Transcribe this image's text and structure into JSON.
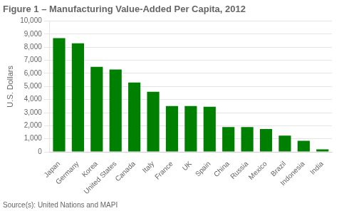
{
  "chart_data": {
    "type": "bar",
    "title": "Figure 1 – Manufacturing Value-Added Per Capita, 2012",
    "ylabel": "U.S. Dollars",
    "annotations": [
      "Source(s): United Nations and MAPI"
    ],
    "categories": [
      "Japan",
      "Germany",
      "Korea",
      "United States",
      "Canada",
      "Italy",
      "France",
      "UK",
      "Spain",
      "China",
      "Russia",
      "Mexico",
      "Brazil",
      "Indonesia",
      "India"
    ],
    "values": [
      8700,
      8300,
      6500,
      6300,
      5300,
      4600,
      3500,
      3500,
      3450,
      1900,
      1900,
      1750,
      1250,
      850,
      200
    ],
    "color": "#008000",
    "ylim": [
      0,
      10000
    ],
    "yticks": [
      0,
      {
        "value": 1000,
        "label": "1,000"
      },
      {
        "value": 2000,
        "label": "2,000"
      },
      {
        "value": 3000,
        "label": "3,000"
      },
      {
        "value": 4000,
        "label": "4,000"
      },
      {
        "value": 5000,
        "label": "5,000"
      },
      {
        "value": 6000,
        "label": "6,000"
      },
      {
        "value": 7000,
        "label": "7,000"
      },
      {
        "value": 8000,
        "label": "8,000"
      },
      {
        "value": 9000,
        "label": "9,000"
      },
      {
        "value": 10000,
        "label": "10,000"
      }
    ],
    "grid": true
  }
}
